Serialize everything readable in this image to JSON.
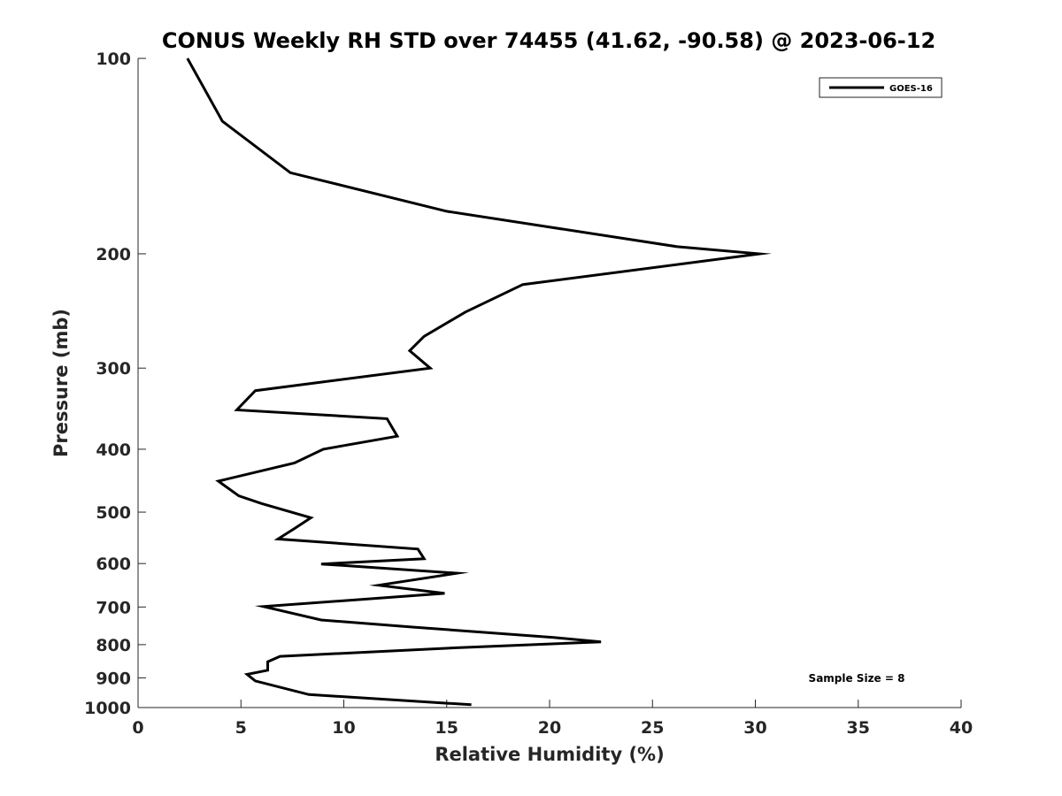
{
  "chart_data": {
    "type": "line",
    "title": "CONUS Weekly RH STD over 74455 (41.62, -90.58) @ 2023-06-12",
    "xlabel": "Relative Humidity (%)",
    "ylabel": "Pressure (mb)",
    "xlim": [
      0,
      40
    ],
    "ylim": [
      1000,
      100
    ],
    "yscale": "log",
    "y_reversed": true,
    "xticks": [
      0,
      5,
      10,
      15,
      20,
      25,
      30,
      35,
      40
    ],
    "yticks": [
      100,
      200,
      300,
      400,
      500,
      600,
      700,
      800,
      900,
      1000
    ],
    "grid": false,
    "legend_position": "top-right",
    "annotation": "Sample Size = 8",
    "series": [
      {
        "name": "GOES-16",
        "color": "#000000",
        "x": [
          2.4,
          4.1,
          7.4,
          15.0,
          26.2,
          30.2,
          18.7,
          15.9,
          13.9,
          13.2,
          14.2,
          5.7,
          4.8,
          12.1,
          12.6,
          9.0,
          7.6,
          3.9,
          4.9,
          6.0,
          8.4,
          7.6,
          6.8,
          13.6,
          13.9,
          8.9,
          15.5,
          11.7,
          14.9,
          6.1,
          8.9,
          13.4,
          20.2,
          22.5,
          15.5,
          6.9,
          6.3,
          6.3,
          5.3,
          5.7,
          8.3,
          16.2
        ],
        "y": [
          100,
          125,
          150,
          172,
          195,
          200,
          223,
          246,
          268,
          282,
          300,
          325,
          348,
          359,
          382,
          400,
          420,
          448,
          472,
          485,
          510,
          530,
          550,
          570,
          590,
          601,
          621,
          648,
          667,
          699,
          733,
          752,
          780,
          792,
          809,
          834,
          850,
          876,
          889,
          910,
          955,
          990
        ]
      }
    ]
  }
}
